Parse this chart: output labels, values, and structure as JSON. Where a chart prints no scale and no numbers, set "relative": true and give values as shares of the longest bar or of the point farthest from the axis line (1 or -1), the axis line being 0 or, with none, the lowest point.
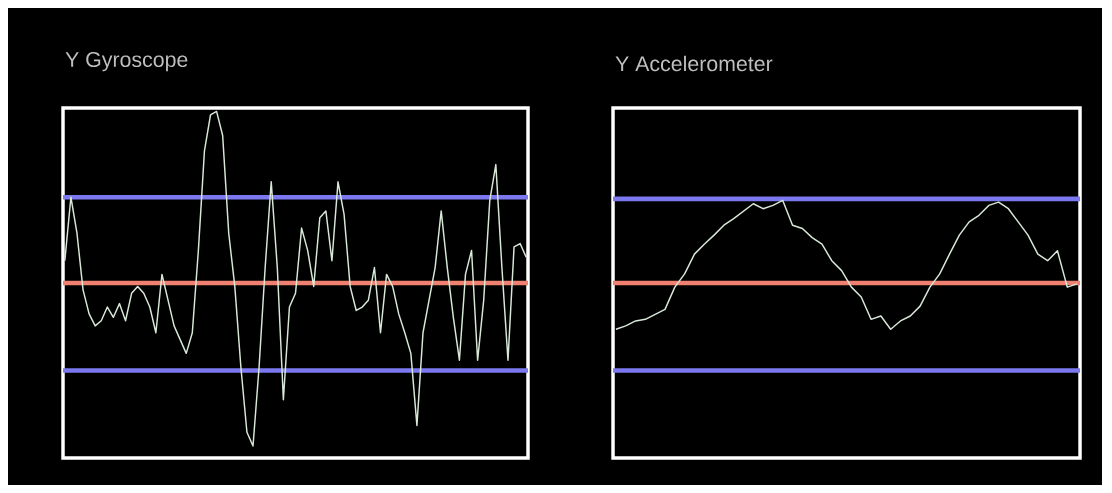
{
  "chart_data": [
    {
      "type": "line",
      "title": "Y Gyroscope",
      "relative": true,
      "categories": [
        null,
        null,
        null,
        null,
        null,
        null,
        null,
        null,
        null,
        null,
        null,
        null,
        null,
        null,
        null,
        null,
        null,
        null,
        null,
        null,
        null,
        null,
        null,
        null,
        null,
        null,
        null,
        null,
        null,
        null,
        null,
        null,
        null,
        null,
        null,
        null,
        null,
        null,
        null,
        null,
        null,
        null,
        null,
        null,
        null,
        null,
        null,
        null,
        null,
        null,
        null,
        null,
        null,
        null,
        null,
        null,
        null,
        null,
        null,
        null,
        null,
        null,
        null,
        null,
        null,
        null,
        null,
        null,
        null,
        null,
        null,
        null,
        null,
        null,
        null,
        null,
        null
      ],
      "series": [
        {
          "color": "#d8e8d8",
          "values": [
            0.13,
            0.5,
            0.29,
            -0.04,
            -0.18,
            -0.25,
            -0.22,
            -0.14,
            -0.2,
            -0.12,
            -0.22,
            -0.06,
            -0.02,
            -0.06,
            -0.14,
            -0.29,
            0.05,
            -0.1,
            -0.25,
            -0.33,
            -0.41,
            -0.29,
            0.19,
            0.77,
            0.98,
            1.0,
            0.86,
            0.29,
            -0.02,
            -0.49,
            -0.87,
            -0.95,
            -0.49,
            0.09,
            0.59,
            0.09,
            -0.68,
            -0.14,
            -0.06,
            0.32,
            0.19,
            -0.02,
            0.38,
            0.42,
            0.13,
            0.59,
            0.4,
            -0.02,
            -0.16,
            -0.14,
            -0.1,
            0.09,
            -0.29,
            0.05,
            -0.02,
            -0.18,
            -0.29,
            -0.41,
            -0.83,
            -0.29,
            -0.1,
            0.09,
            0.42,
            0.09,
            -0.2,
            -0.45,
            0.05,
            0.19,
            -0.45,
            -0.1,
            0.48,
            0.69,
            0.09,
            -0.45,
            0.21,
            0.23,
            0.15
          ]
        }
      ],
      "ref_lines": [
        {
          "axis": "y",
          "value": 0.5,
          "color": "#7b78f0"
        },
        {
          "axis": "y",
          "value": 0,
          "color": "#f08070"
        },
        {
          "axis": "y",
          "value": -0.51,
          "color": "#7b78f0"
        }
      ]
    },
    {
      "type": "line",
      "title": "Y Accelerometer",
      "relative": true,
      "categories": [
        null,
        null,
        null,
        null,
        null,
        null,
        null,
        null,
        null,
        null,
        null,
        null,
        null,
        null,
        null,
        null,
        null,
        null,
        null,
        null,
        null,
        null,
        null,
        null,
        null,
        null,
        null,
        null,
        null,
        null,
        null,
        null,
        null,
        null,
        null,
        null,
        null,
        null,
        null,
        null,
        null,
        null,
        null,
        null,
        null,
        null,
        null,
        null
      ],
      "series": [
        {
          "color": "#d8e8d8",
          "values": [
            -0.56,
            -0.52,
            -0.46,
            -0.44,
            -0.38,
            -0.32,
            -0.05,
            0.11,
            0.35,
            0.47,
            0.58,
            0.7,
            0.78,
            0.87,
            0.96,
            0.9,
            0.94,
            1.0,
            0.7,
            0.66,
            0.55,
            0.47,
            0.27,
            0.15,
            -0.05,
            -0.17,
            -0.44,
            -0.4,
            -0.56,
            -0.46,
            -0.4,
            -0.28,
            -0.05,
            0.11,
            0.35,
            0.58,
            0.74,
            0.82,
            0.94,
            0.98,
            0.9,
            0.74,
            0.58,
            0.35,
            0.27,
            0.39,
            -0.05,
            -0.01
          ]
        }
      ],
      "ref_lines": [
        {
          "axis": "y",
          "value": 1.02,
          "color": "#7b78f0"
        },
        {
          "axis": "y",
          "value": 0,
          "color": "#f08070"
        },
        {
          "axis": "y",
          "value": -1.06,
          "color": "#7b78f0"
        }
      ]
    }
  ]
}
